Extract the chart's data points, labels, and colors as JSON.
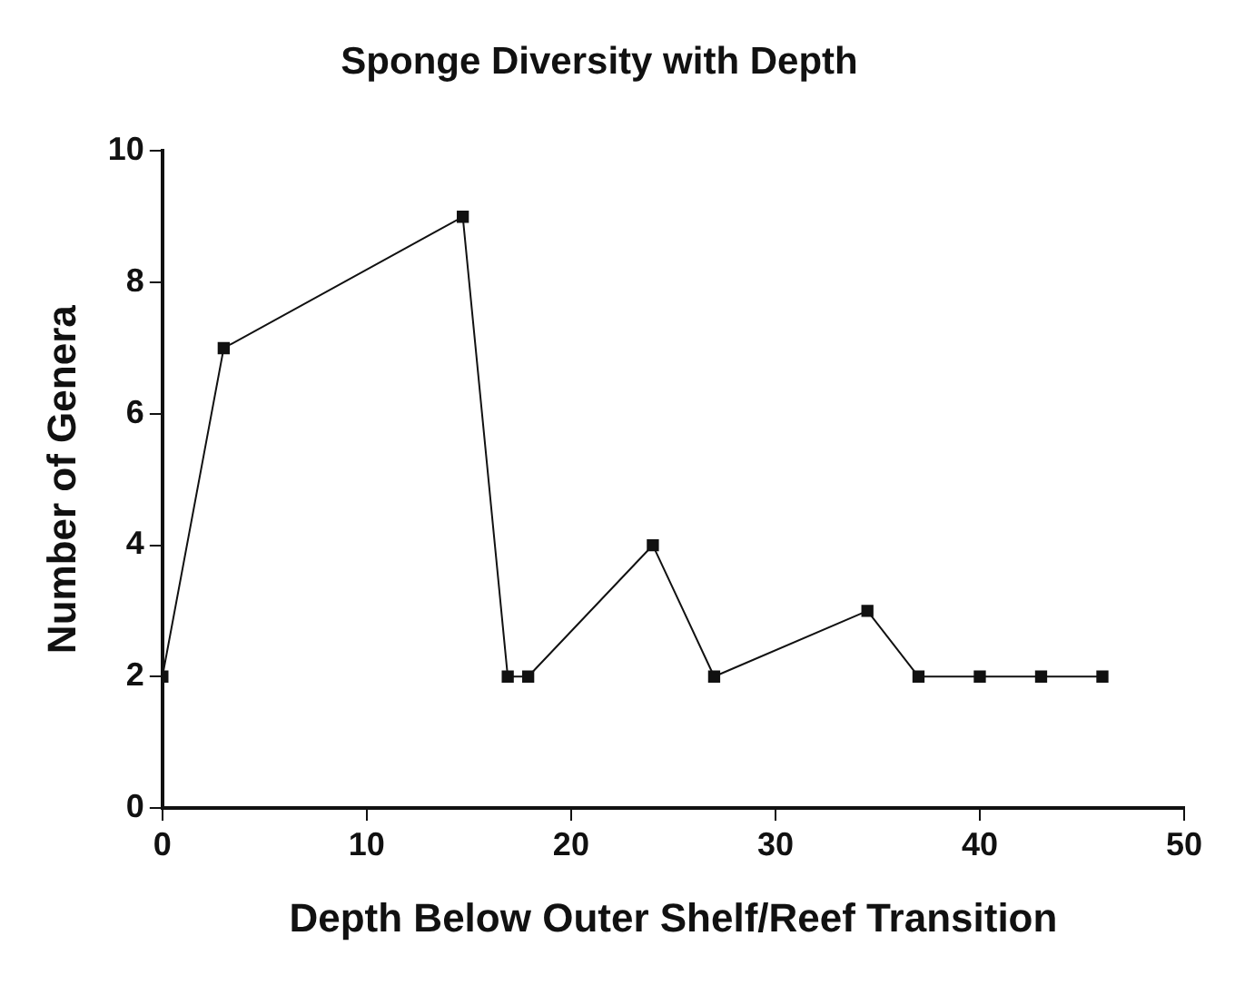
{
  "chart_data": {
    "type": "line",
    "title": "Sponge Diversity with Depth",
    "xlabel": "Depth Below Outer Shelf/Reef Transition",
    "ylabel": "Number of Genera",
    "x": [
      0,
      3,
      14.7,
      16.9,
      17.9,
      24,
      27,
      34.5,
      37,
      40,
      43,
      46
    ],
    "series": [
      {
        "color": "#111111",
        "values": [
          2,
          7,
          9,
          2,
          2,
          4,
          2,
          3,
          2,
          2,
          2,
          2
        ]
      }
    ],
    "xlim": [
      0,
      50
    ],
    "xticks": [
      0,
      10,
      20,
      30,
      40,
      50
    ],
    "ylim": [
      0,
      10
    ],
    "yticks": [
      0,
      2,
      4,
      6,
      8,
      10
    ],
    "grid": false,
    "legend": false,
    "marker": "square",
    "line_style": "solid"
  }
}
